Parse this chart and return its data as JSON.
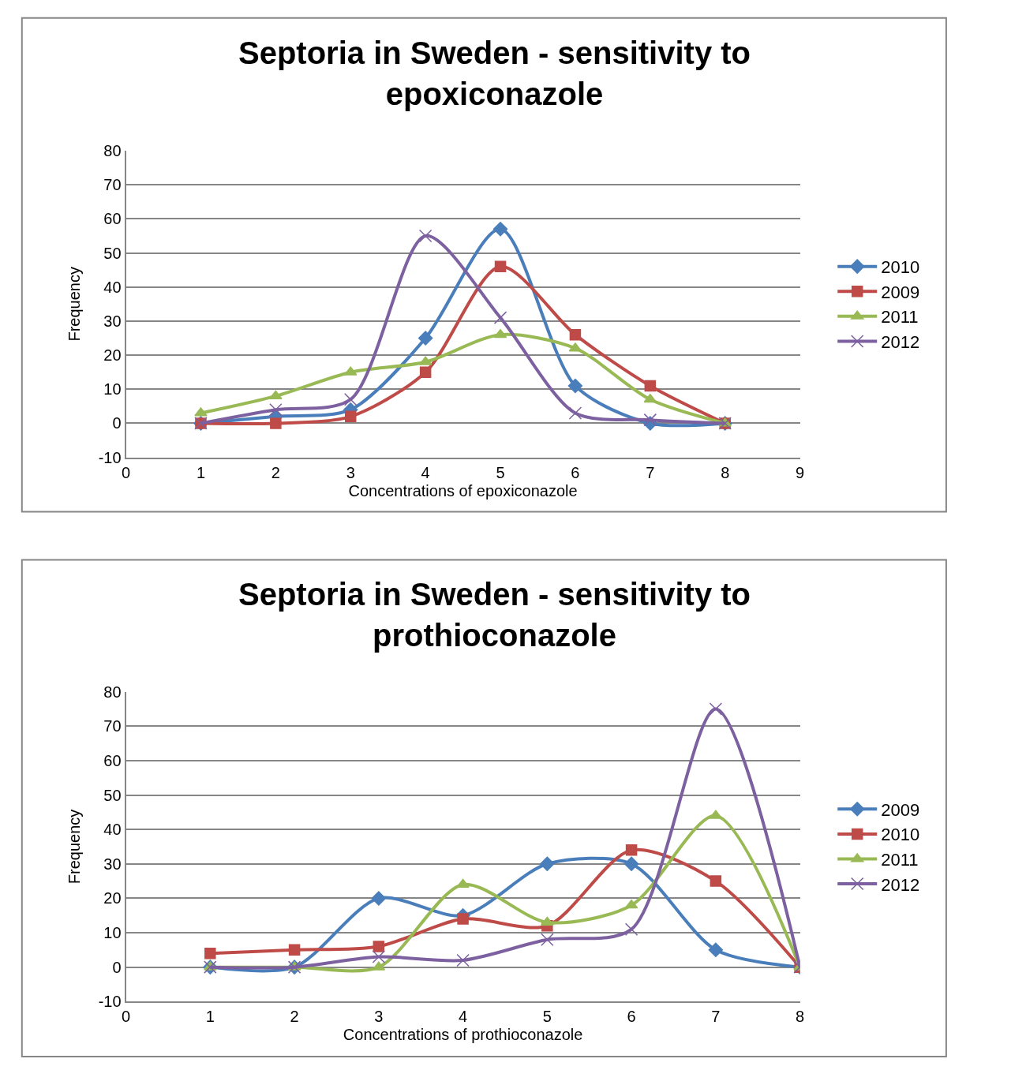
{
  "chart_data": [
    {
      "type": "line",
      "title": "Septoria in Sweden - sensitivity to\nepoxiconazole",
      "xlabel": "Concentrations of epoxiconazole",
      "ylabel": "Frequency",
      "x": [
        1,
        2,
        3,
        4,
        5,
        6,
        7,
        8
      ],
      "xlim": [
        0,
        9
      ],
      "xticks": [
        0,
        1,
        2,
        3,
        4,
        5,
        6,
        7,
        8,
        9
      ],
      "ylim": [
        -10,
        80
      ],
      "yticks": [
        -10,
        0,
        10,
        20,
        30,
        40,
        50,
        60,
        70,
        80
      ],
      "grid": "y",
      "legend": "right",
      "series": [
        {
          "name": "2010",
          "color": "#4a7ebb",
          "marker": "diamond",
          "values": [
            0,
            2,
            4,
            25,
            57,
            11,
            0,
            0
          ]
        },
        {
          "name": "2009",
          "color": "#be4b48",
          "marker": "square",
          "values": [
            0,
            0,
            2,
            15,
            46,
            26,
            11,
            0
          ]
        },
        {
          "name": "2011",
          "color": "#98b954",
          "marker": "triangle",
          "values": [
            3,
            8,
            15,
            18,
            26,
            22,
            7,
            0
          ]
        },
        {
          "name": "2012",
          "color": "#7d60a0",
          "marker": "cross",
          "values": [
            0,
            4,
            7,
            55,
            31,
            3,
            1,
            0
          ]
        }
      ]
    },
    {
      "type": "line",
      "title": "Septoria in Sweden - sensitivity to\nprothioconazole",
      "xlabel": "Concentrations of prothioconazole",
      "ylabel": "Frequency",
      "x": [
        1,
        2,
        3,
        4,
        5,
        6,
        7,
        8
      ],
      "xlim": [
        0,
        8
      ],
      "xticks": [
        0,
        1,
        2,
        3,
        4,
        5,
        6,
        7,
        8
      ],
      "ylim": [
        -10,
        80
      ],
      "yticks": [
        -10,
        0,
        10,
        20,
        30,
        40,
        50,
        60,
        70,
        80
      ],
      "grid": "y",
      "legend": "right",
      "series": [
        {
          "name": "2009",
          "color": "#4a7ebb",
          "marker": "diamond",
          "values": [
            0,
            0,
            20,
            15,
            30,
            30,
            5,
            0
          ]
        },
        {
          "name": "2010",
          "color": "#be4b48",
          "marker": "square",
          "values": [
            4,
            5,
            6,
            14,
            12,
            34,
            25,
            0
          ]
        },
        {
          "name": "2011",
          "color": "#98b954",
          "marker": "triangle",
          "values": [
            0,
            0,
            0,
            24,
            13,
            18,
            44,
            0
          ]
        },
        {
          "name": "2012",
          "color": "#7d60a0",
          "marker": "cross",
          "values": [
            0,
            0,
            3,
            2,
            8,
            11,
            75,
            0
          ]
        }
      ]
    }
  ]
}
